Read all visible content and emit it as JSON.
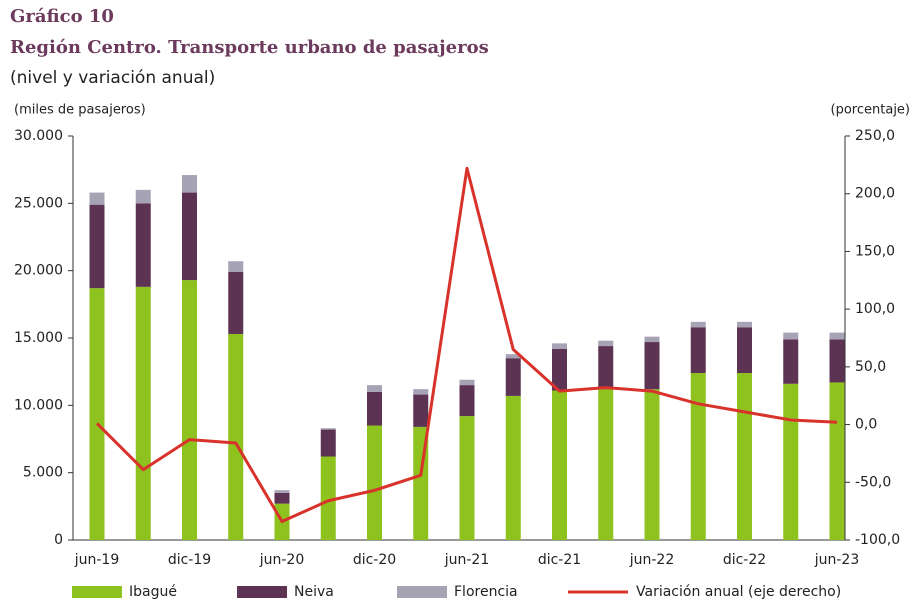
{
  "chart_data": {
    "type": "bar",
    "stacked": true,
    "title": "Gráfico 10",
    "subtitle": "Región Centro. Transporte urbano de pasajeros",
    "note": "(nivel y variación anual)",
    "y_label": "(miles de pasajeros)",
    "y2_label": "(porcentaje)",
    "categories": [
      "jun-19",
      null,
      "dic-19",
      null,
      "jun-20",
      null,
      "dic-20",
      null,
      "jun-21",
      null,
      "dic-21",
      null,
      "jun-22",
      null,
      "dic-22",
      null,
      "jun-23"
    ],
    "series": [
      {
        "name": "Ibagué",
        "color": "#8dc21f",
        "values": [
          18700,
          18800,
          19300,
          15300,
          2700,
          6200,
          8500,
          8400,
          9200,
          10700,
          11100,
          11200,
          11200,
          12400,
          12400,
          11600,
          11700
        ]
      },
      {
        "name": "Neiva",
        "color": "#5c3352",
        "values": [
          6200,
          6200,
          6500,
          4600,
          800,
          2000,
          2500,
          2400,
          2300,
          2800,
          3100,
          3200,
          3500,
          3400,
          3400,
          3300,
          3200
        ]
      },
      {
        "name": "Florencia",
        "color": "#a6a3b5",
        "values": [
          900,
          1000,
          1300,
          800,
          200,
          100,
          500,
          400,
          400,
          300,
          400,
          400,
          400,
          400,
          400,
          500,
          500
        ]
      },
      {
        "name": "Variación anual (eje derecho)",
        "color": "#d9322b",
        "type": "line",
        "axis": "y2",
        "values": [
          1,
          -39,
          -13,
          -16,
          -84,
          -66,
          -57,
          -44,
          222,
          65,
          29,
          32,
          29,
          18,
          11,
          4,
          2
        ]
      }
    ],
    "ylim": [
      0,
      30000
    ],
    "yticks": [
      0,
      {
        "value": 5000,
        "label": "5.000"
      },
      {
        "value": 10000,
        "label": "10.000"
      },
      {
        "value": 15000,
        "label": "15.000"
      },
      {
        "value": 20000,
        "label": "20.000"
      },
      {
        "value": 25000,
        "label": "25.000"
      },
      {
        "value": 30000,
        "label": "30.000"
      }
    ],
    "y2lim": [
      -100,
      250
    ],
    "y2ticks": [
      {
        "value": -100,
        "label": "-100,0"
      },
      {
        "value": -50,
        "label": "-50,0"
      },
      {
        "value": 0,
        "label": "0,0"
      },
      {
        "value": 50,
        "label": "50,0"
      },
      {
        "value": 100,
        "label": "100,0"
      },
      {
        "value": 150,
        "label": "150,0"
      },
      {
        "value": 200,
        "label": "200,0"
      },
      {
        "value": 250,
        "label": "250,0"
      }
    ],
    "legend": "bottom"
  }
}
